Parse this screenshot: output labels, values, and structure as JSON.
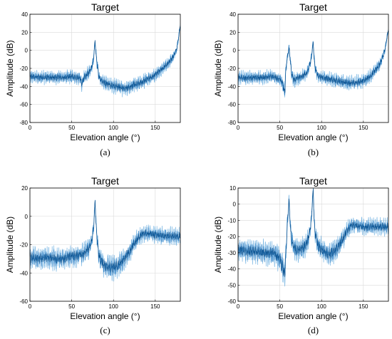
{
  "chart_data": [
    {
      "type": "line",
      "title": "Target",
      "xlabel": "Elevation angle (°)",
      "ylabel": "Amplitude (dB)",
      "caption": "(a)",
      "xlim": [
        0,
        180
      ],
      "ylim": [
        -80,
        40
      ],
      "xticks": [
        0,
        50,
        100,
        150
      ],
      "yticks": [
        -80,
        -60,
        -40,
        -20,
        0,
        20,
        40
      ],
      "grid": true,
      "colors": [
        "#0a4f8c",
        "#2f7fc4",
        "#6aaee0"
      ],
      "series": [
        {
          "x": [
            0,
            10,
            20,
            30,
            40,
            50,
            55,
            60,
            62,
            65,
            68,
            70,
            72,
            74,
            75,
            76,
            77,
            78,
            79,
            80,
            81,
            82,
            84,
            86,
            88,
            90,
            95,
            100,
            105,
            110,
            115,
            120,
            125,
            130,
            135,
            140,
            145,
            150,
            155,
            160,
            165,
            170,
            172,
            174,
            176,
            177,
            178,
            179,
            180
          ],
          "y": [
            -29,
            -30,
            -30,
            -30,
            -30,
            -29,
            -30,
            -31,
            -37,
            -30,
            -27,
            -25,
            -22,
            -18,
            -15,
            -10,
            0,
            11,
            -3,
            -12,
            -19,
            -27,
            -32,
            -34,
            -35,
            -36,
            -38,
            -40,
            -40,
            -42,
            -42,
            -41,
            -38,
            -37,
            -35,
            -32,
            -30,
            -27,
            -23,
            -19,
            -15,
            -9,
            -6,
            -2,
            3,
            9,
            15,
            22,
            28
          ]
        }
      ]
    },
    {
      "type": "line",
      "title": "Target",
      "xlabel": "Elevation angle (°)",
      "ylabel": "Amplitude (dB)",
      "caption": "(b)",
      "xlim": [
        0,
        180
      ],
      "ylim": [
        -80,
        40
      ],
      "xticks": [
        0,
        50,
        100,
        150
      ],
      "yticks": [
        -80,
        -60,
        -40,
        -20,
        0,
        20,
        40
      ],
      "grid": true,
      "colors": [
        "#0a4f8c",
        "#2f7fc4",
        "#6aaee0"
      ],
      "series": [
        {
          "x": [
            0,
            10,
            20,
            30,
            40,
            45,
            50,
            52,
            54,
            56,
            57,
            58,
            59,
            60,
            61,
            62,
            63,
            64,
            66,
            68,
            70,
            75,
            80,
            83,
            85,
            87,
            88,
            89,
            90,
            91,
            92,
            94,
            96,
            100,
            110,
            120,
            130,
            140,
            150,
            155,
            160,
            165,
            170,
            172,
            174,
            176,
            177,
            178,
            179,
            180
          ],
          "y": [
            -30,
            -31,
            -30,
            -30,
            -29,
            -30,
            -32,
            -34,
            -40,
            -47,
            -25,
            -15,
            -8,
            -2,
            3,
            -5,
            -16,
            -25,
            -32,
            -33,
            -31,
            -30,
            -27,
            -24,
            -18,
            -12,
            -6,
            2,
            9,
            -8,
            -18,
            -25,
            -28,
            -30,
            -32,
            -34,
            -36,
            -36,
            -34,
            -31,
            -27,
            -21,
            -15,
            -10,
            -5,
            2,
            7,
            13,
            18,
            24
          ]
        }
      ]
    },
    {
      "type": "line",
      "title": "Target",
      "xlabel": "Elevation angle (°)",
      "ylabel": "Amplitude (dB)",
      "caption": "(c)",
      "xlim": [
        0,
        180
      ],
      "ylim": [
        -60,
        20
      ],
      "xticks": [
        0,
        50,
        100,
        150
      ],
      "yticks": [
        -60,
        -40,
        -20,
        0,
        20
      ],
      "grid": true,
      "colors": [
        "#0a4f8c",
        "#2f7fc4",
        "#6aaee0"
      ],
      "series": [
        {
          "x": [
            0,
            10,
            20,
            30,
            40,
            50,
            55,
            60,
            62,
            65,
            68,
            70,
            72,
            74,
            75,
            76,
            77,
            78,
            79,
            80,
            81,
            82,
            84,
            86,
            88,
            90,
            95,
            100,
            105,
            110,
            115,
            120,
            125,
            130,
            135,
            140,
            150,
            160,
            170,
            180
          ],
          "y": [
            -29,
            -30,
            -29,
            -30,
            -30,
            -28,
            -28,
            -27,
            -27,
            -26,
            -24,
            -23,
            -21,
            -17,
            -14,
            -9,
            0,
            11,
            -4,
            -13,
            -20,
            -26,
            -30,
            -32,
            -34,
            -35,
            -36,
            -36,
            -35,
            -32,
            -28,
            -24,
            -19,
            -15,
            -12,
            -12,
            -13,
            -14,
            -14,
            -14
          ]
        }
      ]
    },
    {
      "type": "line",
      "title": "Target",
      "xlabel": "Elevation angle (°)",
      "ylabel": "Amplitude (dB)",
      "caption": "(d)",
      "xlim": [
        0,
        180
      ],
      "ylim": [
        -60,
        10
      ],
      "xticks": [
        0,
        50,
        100,
        150
      ],
      "yticks": [
        -60,
        -50,
        -40,
        -30,
        -20,
        -10,
        0,
        10
      ],
      "grid": true,
      "colors": [
        "#0a4f8c",
        "#2f7fc4",
        "#6aaee0"
      ],
      "series": [
        {
          "x": [
            0,
            10,
            20,
            30,
            40,
            45,
            50,
            52,
            54,
            56,
            57,
            58,
            59,
            60,
            61,
            62,
            63,
            64,
            66,
            68,
            70,
            75,
            80,
            83,
            85,
            87,
            88,
            89,
            90,
            91,
            92,
            94,
            96,
            100,
            105,
            110,
            115,
            120,
            125,
            130,
            135,
            140,
            150,
            160,
            170,
            180
          ],
          "y": [
            -28,
            -29,
            -29,
            -30,
            -30,
            -31,
            -34,
            -37,
            -40,
            -43,
            -33,
            -22,
            -12,
            -5,
            3,
            -8,
            -16,
            -21,
            -26,
            -28,
            -28,
            -28,
            -26,
            -23,
            -19,
            -13,
            -7,
            2,
            9,
            -9,
            -17,
            -22,
            -26,
            -28,
            -30,
            -31,
            -29,
            -26,
            -22,
            -17,
            -13,
            -13,
            -14,
            -14,
            -14,
            -14
          ]
        }
      ]
    }
  ]
}
